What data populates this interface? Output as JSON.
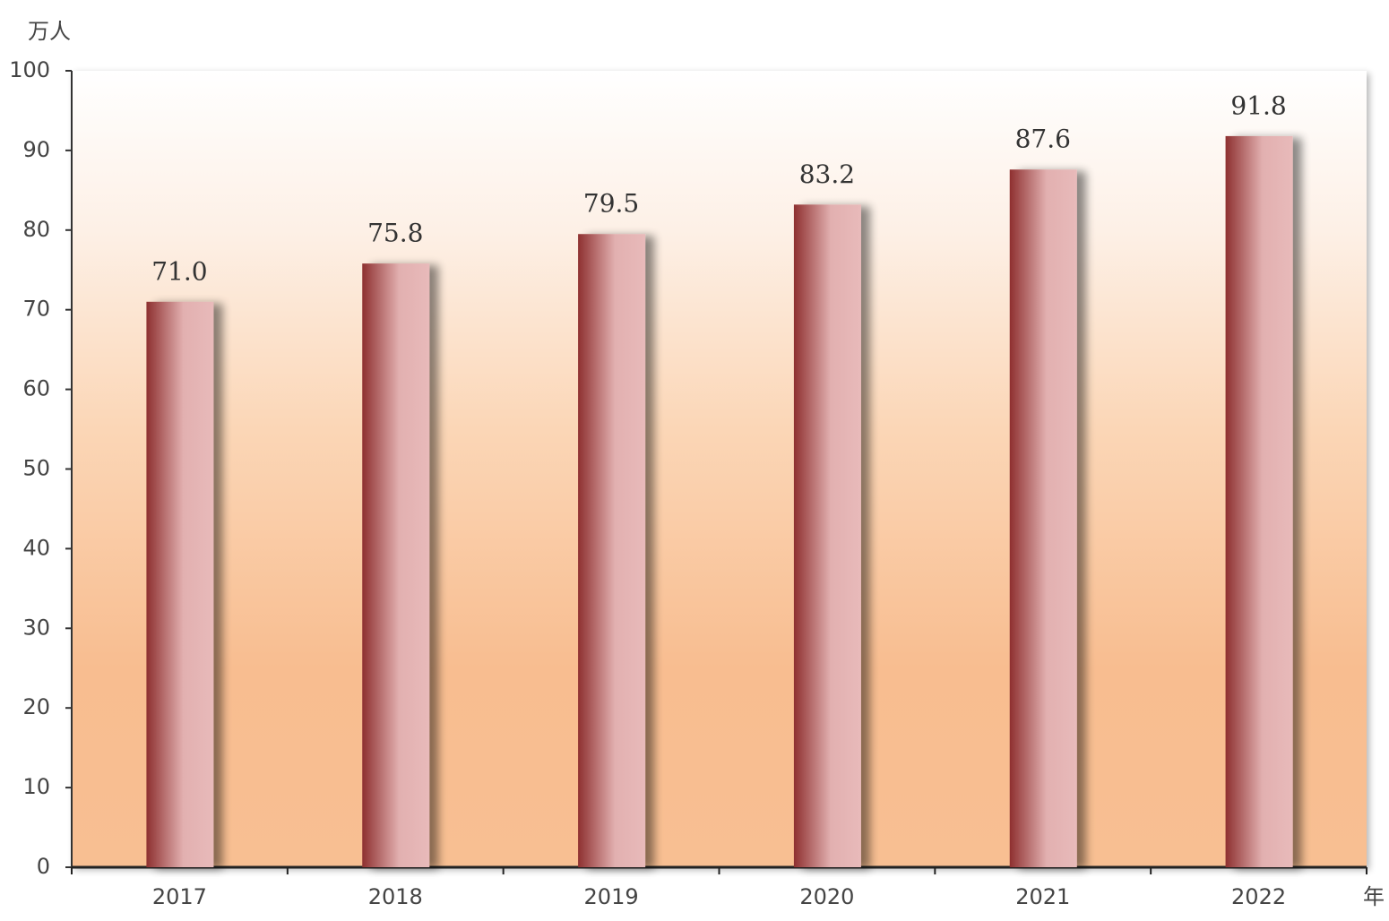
{
  "chart_data": {
    "type": "bar",
    "y_label": "万人",
    "x_label": "年",
    "categories": [
      "2017",
      "2018",
      "2019",
      "2020",
      "2021",
      "2022"
    ],
    "values": [
      71.0,
      75.8,
      79.5,
      83.2,
      87.6,
      91.8
    ],
    "value_labels": [
      "71.0",
      "75.8",
      "79.5",
      "83.2",
      "87.6",
      "91.8"
    ],
    "color": "#8e3030",
    "ylim": [
      0,
      100
    ],
    "yticks": [
      0,
      10,
      20,
      30,
      40,
      50,
      60,
      70,
      80,
      90,
      100
    ]
  }
}
